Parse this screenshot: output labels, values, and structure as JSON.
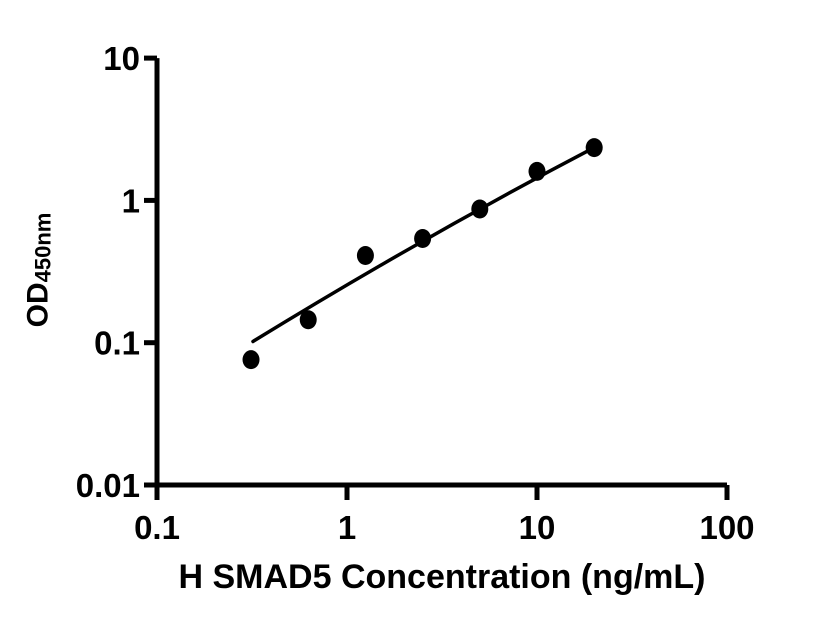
{
  "chart_data": {
    "type": "scatter",
    "title": "",
    "xlabel": "H SMAD5 Concentration (ng/mL)",
    "ylabel": "OD",
    "ylabel_subscript": "450nm",
    "x_scale": "log",
    "y_scale": "log",
    "xlim": [
      0.1,
      100
    ],
    "ylim": [
      0.01,
      10
    ],
    "x_ticks": [
      {
        "value": 0.1,
        "label": "0.1"
      },
      {
        "value": 1,
        "label": "1"
      },
      {
        "value": 10,
        "label": "10"
      },
      {
        "value": 100,
        "label": "100"
      }
    ],
    "y_ticks": [
      {
        "value": 0.01,
        "label": "0.01"
      },
      {
        "value": 0.1,
        "label": "0.1"
      },
      {
        "value": 1,
        "label": "1"
      },
      {
        "value": 10,
        "label": "10"
      }
    ],
    "series": [
      {
        "marker": "filled-circle",
        "color": "#000000",
        "points": [
          {
            "x": 0.3125,
            "y": 0.076
          },
          {
            "x": 0.625,
            "y": 0.145
          },
          {
            "x": 1.25,
            "y": 0.41
          },
          {
            "x": 2.5,
            "y": 0.54
          },
          {
            "x": 5,
            "y": 0.87
          },
          {
            "x": 10,
            "y": 1.6
          },
          {
            "x": 20,
            "y": 2.35
          }
        ]
      }
    ],
    "fit_curve": {
      "shape": "quadratic_bezier",
      "color": "#000000",
      "start": {
        "x": 0.32,
        "y": 0.102
      },
      "control": {
        "x": 2.5,
        "y": 0.55
      },
      "end": {
        "x": 20,
        "y": 2.35
      }
    },
    "grid": false,
    "legend": false,
    "axis_color": "#000000",
    "background_color": "#ffffff"
  }
}
